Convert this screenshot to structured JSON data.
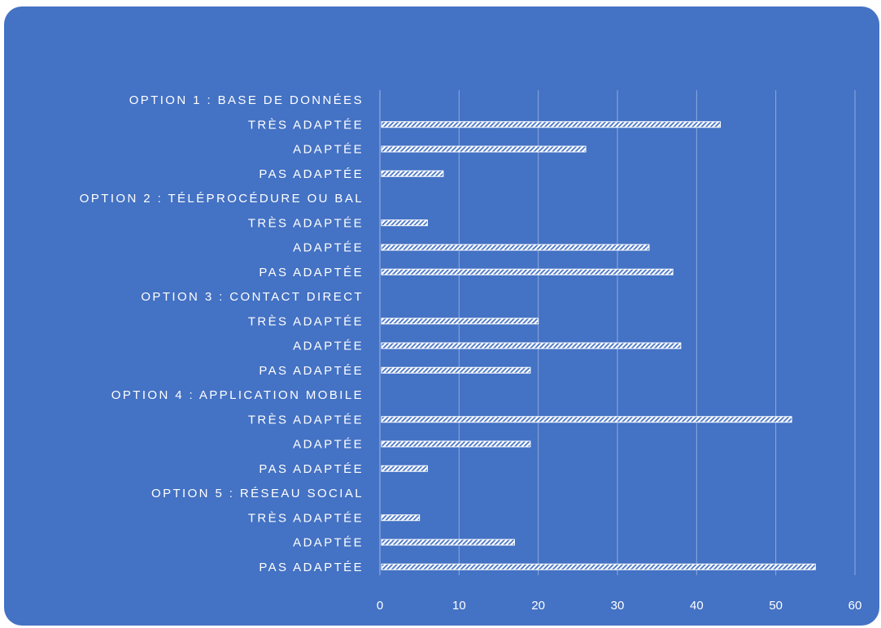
{
  "chart_data": {
    "type": "bar",
    "orientation": "horizontal",
    "title": "",
    "xlabel": "",
    "ylabel": "",
    "xlim": [
      0,
      60
    ],
    "x_ticks": [
      0,
      10,
      20,
      30,
      40,
      50,
      60
    ],
    "grid": true,
    "legend": "none",
    "colors": {
      "background": "#4472c4",
      "bar_fill": "#ffffff",
      "gridline": "#8fa9dc",
      "text": "#ffffff"
    },
    "categories": [
      "OPTION 1 :  BASE DE DONNÉES",
      "TRÈS ADAPTÉE",
      "ADAPTÉE",
      "PAS ADAPTÉE",
      "OPTION 2 : TÉLÉPROCÉDURE OU BAL",
      "TRÈS ADAPTÉE",
      "ADAPTÉE",
      "PAS ADAPTÉE",
      "OPTION 3 : CONTACT DIRECT",
      "TRÈS ADAPTÉE",
      "ADAPTÉE",
      "PAS ADAPTÉE",
      "OPTION 4 : APPLICATION MOBILE",
      "TRÈS ADAPTÉE",
      "ADAPTÉE",
      "PAS ADAPTÉE",
      "OPTION 5 : RÉSEAU SOCIAL",
      "TRÈS ADAPTÉE",
      "ADAPTÉE",
      "PAS ADAPTÉE"
    ],
    "values": [
      null,
      43,
      26,
      8,
      null,
      6,
      34,
      37,
      null,
      20,
      38,
      19,
      null,
      52,
      19,
      6,
      null,
      5,
      17,
      55
    ]
  }
}
